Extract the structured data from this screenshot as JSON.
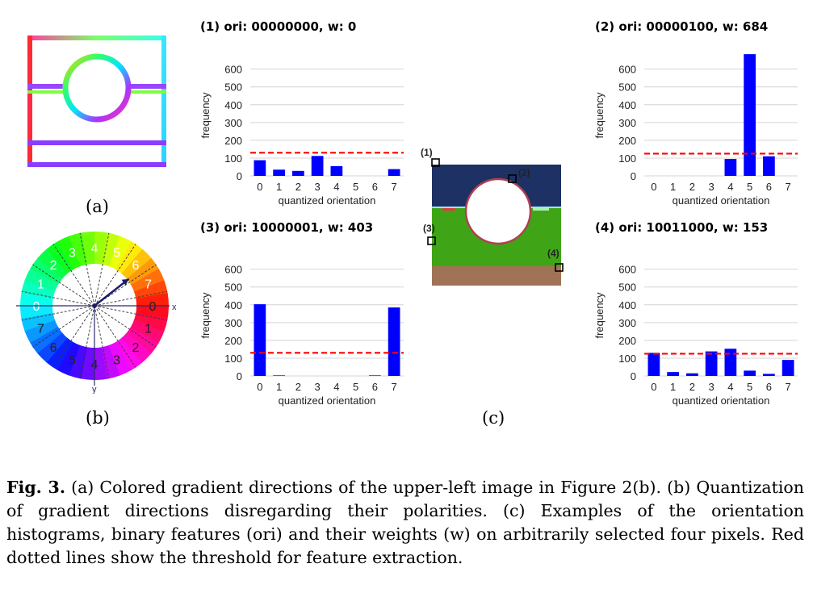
{
  "panel_a": {
    "label": "(a)"
  },
  "panel_b": {
    "label": "(b)",
    "outer_numbers": [
      "0",
      "1",
      "2",
      "3",
      "4",
      "5",
      "6",
      "7",
      "0",
      "1",
      "2",
      "3",
      "4",
      "5",
      "6",
      "7"
    ],
    "axis_x": "x",
    "axis_y": "y"
  },
  "panel_c": {
    "label": "(c)",
    "markers": [
      "(1)",
      "(2)",
      "(3)",
      "(4)"
    ],
    "colors": {
      "top": "#1e3164",
      "middle": "#3fa516",
      "bottom": "#a07356"
    }
  },
  "caption": {
    "fig_label": "Fig. 3.",
    "text": " (a) Colored gradient directions of the upper-left image in Figure 2(b). (b) Quantization of gradient directions disregarding their polarities. (c) Examples of the orientation histograms, binary features (ori) and their weights (w) on arbitrarily selected four pixels. Red dotted lines show the threshold for feature extraction."
  },
  "chart_data": [
    {
      "type": "bar",
      "title": "(1) ori: 00000000, w: 0",
      "categories": [
        "0",
        "1",
        "2",
        "3",
        "4",
        "5",
        "6",
        "7"
      ],
      "values": [
        88,
        35,
        28,
        112,
        55,
        0,
        0,
        38
      ],
      "threshold": 130,
      "xlabel": "quantized orientation",
      "ylabel": "frequency",
      "yticks": [
        0,
        100,
        200,
        300,
        400,
        500,
        600
      ],
      "ylim": [
        0,
        680
      ],
      "bar_color": "#0000ff",
      "threshold_color": "#ff0000"
    },
    {
      "type": "bar",
      "title": "(2) ori: 00000100, w: 684",
      "categories": [
        "0",
        "1",
        "2",
        "3",
        "4",
        "5",
        "6",
        "7"
      ],
      "values": [
        0,
        0,
        0,
        0,
        95,
        684,
        110,
        0
      ],
      "threshold": 125,
      "xlabel": "quantized orientation",
      "ylabel": "frequency",
      "yticks": [
        0,
        100,
        200,
        300,
        400,
        500,
        600
      ],
      "ylim": [
        0,
        680
      ],
      "bar_color": "#0000ff",
      "threshold_color": "#ff0000"
    },
    {
      "type": "bar",
      "title": "(3) ori: 10000001, w: 403",
      "categories": [
        "0",
        "1",
        "2",
        "3",
        "4",
        "5",
        "6",
        "7"
      ],
      "values": [
        403,
        3,
        0,
        0,
        0,
        0,
        3,
        385
      ],
      "threshold": 130,
      "xlabel": "quantized orientation",
      "ylabel": "frequency",
      "yticks": [
        0,
        100,
        200,
        300,
        400,
        500,
        600
      ],
      "ylim": [
        0,
        680
      ],
      "bar_color": "#0000ff",
      "threshold_color": "#ff0000"
    },
    {
      "type": "bar",
      "title": "(4) ori: 10011000, w: 153",
      "categories": [
        "0",
        "1",
        "2",
        "3",
        "4",
        "5",
        "6",
        "7"
      ],
      "values": [
        130,
        22,
        15,
        138,
        153,
        30,
        12,
        90
      ],
      "threshold": 125,
      "xlabel": "quantized orientation",
      "ylabel": "frequency",
      "yticks": [
        0,
        100,
        200,
        300,
        400,
        500,
        600
      ],
      "ylim": [
        0,
        680
      ],
      "bar_color": "#0000ff",
      "threshold_color": "#ff0000"
    }
  ]
}
